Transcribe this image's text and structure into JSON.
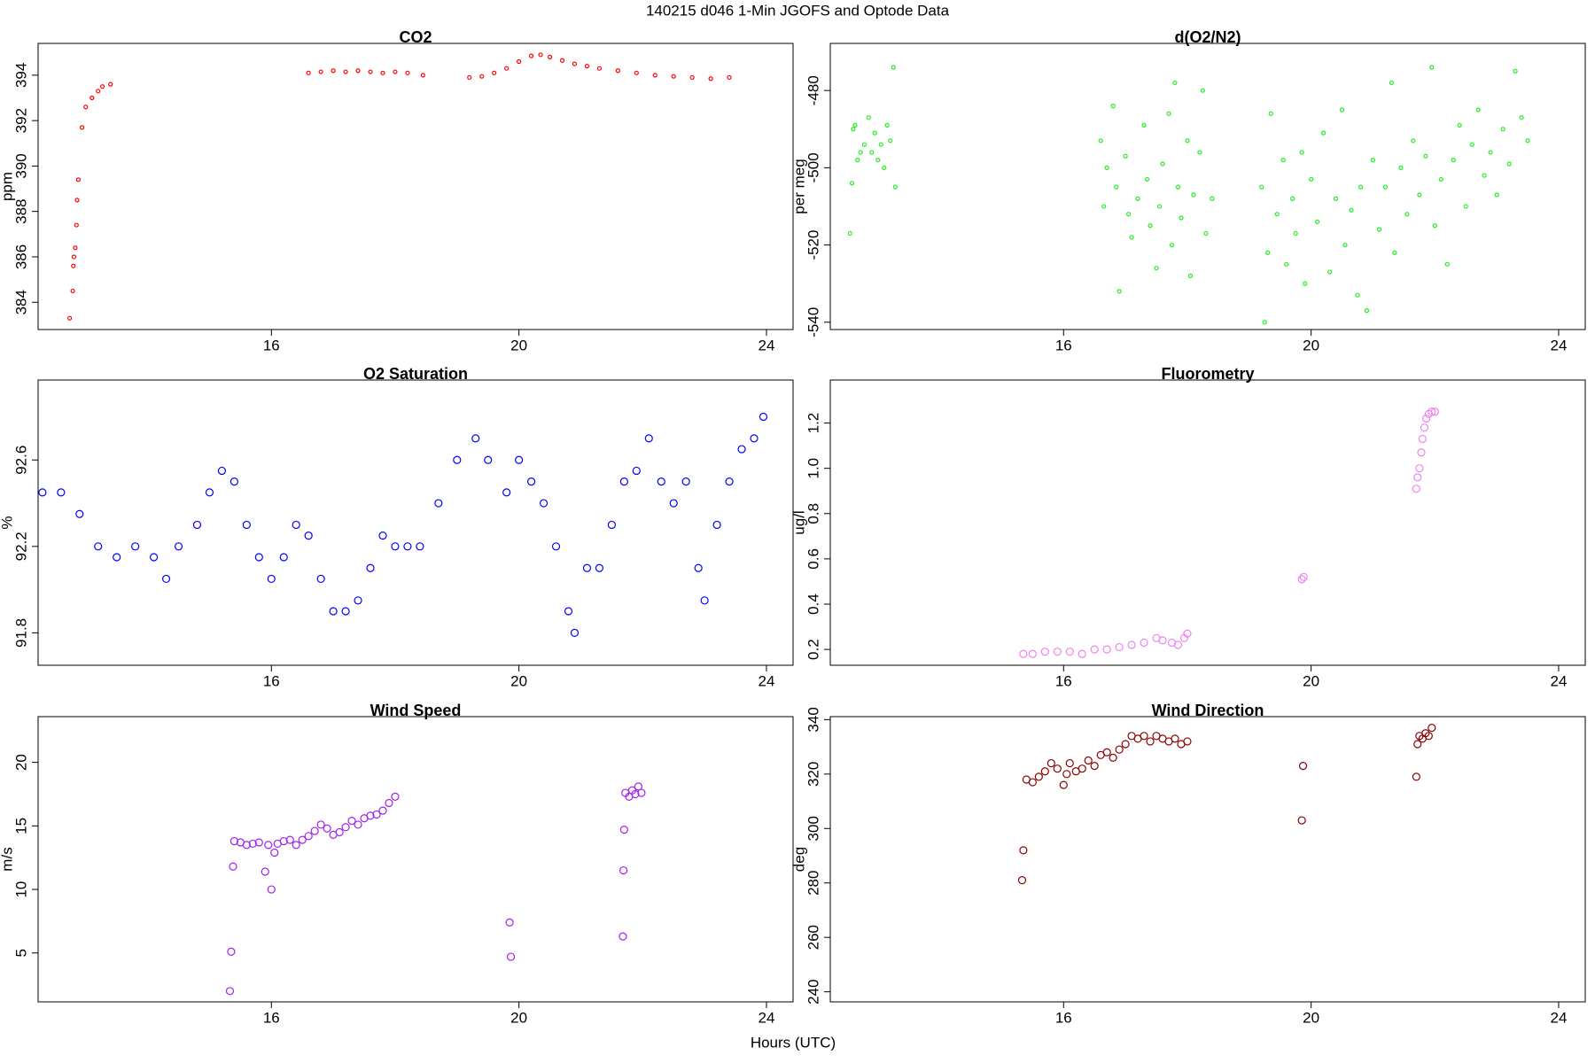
{
  "title": "140215   d046   1-Min  JGOFS and Optode Data",
  "xlabel": "Hours (UTC)",
  "chart_data": [
    {
      "type": "scatter",
      "title": "CO2",
      "ylabel": "ppm",
      "color": "#ff0000",
      "xlim": [
        12.23,
        24.43
      ],
      "xticks": [
        16,
        20,
        24
      ],
      "ylim": [
        382.8,
        395.4
      ],
      "yticks": [
        384,
        386,
        388,
        390,
        392,
        394
      ],
      "x": [
        12.74,
        12.79,
        12.8,
        12.81,
        12.83,
        12.85,
        12.86,
        12.88,
        12.94,
        13.0,
        13.1,
        13.2,
        13.27,
        13.4,
        16.6,
        16.8,
        17.0,
        17.2,
        17.4,
        17.6,
        17.8,
        18.0,
        18.2,
        18.45,
        19.2,
        19.4,
        19.6,
        19.8,
        20.0,
        20.2,
        20.35,
        20.5,
        20.7,
        20.9,
        21.1,
        21.3,
        21.6,
        21.9,
        22.2,
        22.5,
        22.8,
        23.1,
        23.4
      ],
      "values": [
        383.3,
        384.5,
        385.6,
        386.0,
        386.4,
        387.4,
        388.5,
        389.4,
        391.7,
        392.6,
        393.0,
        393.3,
        393.5,
        393.6,
        394.1,
        394.15,
        394.2,
        394.15,
        394.2,
        394.15,
        394.1,
        394.15,
        394.1,
        394.0,
        393.9,
        393.95,
        394.1,
        394.3,
        394.6,
        394.85,
        394.9,
        394.8,
        394.65,
        394.5,
        394.4,
        394.3,
        394.2,
        394.1,
        394.0,
        393.95,
        393.9,
        393.85,
        393.9
      ]
    },
    {
      "type": "scatter",
      "title": "d(O2/N2)",
      "ylabel": "per meg",
      "color": "#22ee22",
      "xlim": [
        12.23,
        24.43
      ],
      "xticks": [
        16,
        20,
        24
      ],
      "ylim": [
        -541.9,
        -467.8
      ],
      "yticks": [
        -540,
        -520,
        -500,
        -480
      ],
      "x": [
        12.55,
        12.58,
        12.6,
        12.63,
        12.67,
        12.72,
        12.78,
        12.85,
        12.9,
        12.95,
        13.0,
        13.05,
        13.1,
        13.15,
        13.2,
        13.25,
        13.28,
        16.6,
        16.65,
        16.7,
        16.8,
        16.85,
        16.9,
        17.0,
        17.05,
        17.1,
        17.2,
        17.3,
        17.35,
        17.4,
        17.5,
        17.55,
        17.6,
        17.7,
        17.75,
        17.8,
        17.85,
        17.9,
        18.0,
        18.05,
        18.1,
        18.2,
        18.25,
        18.3,
        18.4,
        19.2,
        19.25,
        19.3,
        19.35,
        19.45,
        19.55,
        19.6,
        19.7,
        19.75,
        19.85,
        19.9,
        20.0,
        20.1,
        20.2,
        20.3,
        20.4,
        20.5,
        20.55,
        20.65,
        20.75,
        20.8,
        20.9,
        21.0,
        21.1,
        21.2,
        21.3,
        21.35,
        21.45,
        21.55,
        21.65,
        21.75,
        21.85,
        21.95,
        22.0,
        22.1,
        22.2,
        22.3,
        22.4,
        22.5,
        22.6,
        22.7,
        22.8,
        22.9,
        23.0,
        23.1,
        23.2,
        23.3,
        23.4,
        23.5
      ],
      "values": [
        -517,
        -504,
        -490,
        -489,
        -498,
        -496,
        -494,
        -487,
        -496,
        -491,
        -498,
        -494,
        -500,
        -489,
        -493,
        -474,
        -505,
        -493,
        -510,
        -500,
        -484,
        -505,
        -532,
        -497,
        -512,
        -518,
        -508,
        -489,
        -503,
        -515,
        -526,
        -510,
        -499,
        -486,
        -520,
        -478,
        -505,
        -513,
        -493,
        -528,
        -507,
        -496,
        -480,
        -517,
        -508,
        -505,
        -540,
        -522,
        -486,
        -512,
        -498,
        -525,
        -508,
        -517,
        -496,
        -530,
        -503,
        -514,
        -491,
        -527,
        -508,
        -485,
        -520,
        -511,
        -533,
        -505,
        -537,
        -498,
        -516,
        -505,
        -478,
        -522,
        -500,
        -512,
        -493,
        -507,
        -497,
        -474,
        -515,
        -503,
        -525,
        -498,
        -489,
        -510,
        -494,
        -485,
        -502,
        -496,
        -507,
        -490,
        -499,
        -475,
        -487,
        -493
      ]
    },
    {
      "type": "scatter",
      "title": "O2 Saturation",
      "ylabel": "%",
      "color": "#0000ff",
      "xlim": [
        12.23,
        24.43
      ],
      "xticks": [
        16,
        20,
        24
      ],
      "ylim": [
        91.65,
        92.97
      ],
      "yticks": [
        91.8,
        92.2,
        92.6
      ],
      "x": [
        12.3,
        12.6,
        12.9,
        13.2,
        13.5,
        13.8,
        14.1,
        14.3,
        14.5,
        14.8,
        15.0,
        15.2,
        15.4,
        15.6,
        15.8,
        16.0,
        16.2,
        16.4,
        16.6,
        16.8,
        17.0,
        17.2,
        17.4,
        17.6,
        17.8,
        18.0,
        18.2,
        18.4,
        18.7,
        19.0,
        19.3,
        19.5,
        19.8,
        20.0,
        20.2,
        20.4,
        20.6,
        20.8,
        20.9,
        21.1,
        21.3,
        21.5,
        21.7,
        21.9,
        22.1,
        22.3,
        22.5,
        22.7,
        22.9,
        23.0,
        23.2,
        23.4,
        23.6,
        23.8,
        23.95
      ],
      "values": [
        92.45,
        92.45,
        92.35,
        92.2,
        92.15,
        92.2,
        92.15,
        92.05,
        92.2,
        92.3,
        92.45,
        92.55,
        92.5,
        92.3,
        92.15,
        92.05,
        92.15,
        92.3,
        92.25,
        92.05,
        91.9,
        91.9,
        91.95,
        92.1,
        92.25,
        92.2,
        92.2,
        92.2,
        92.4,
        92.6,
        92.7,
        92.6,
        92.45,
        92.6,
        92.5,
        92.4,
        92.2,
        91.9,
        91.8,
        92.1,
        92.1,
        92.3,
        92.5,
        92.55,
        92.7,
        92.5,
        92.4,
        92.5,
        92.1,
        91.95,
        92.3,
        92.5,
        92.65,
        92.7,
        92.8
      ]
    },
    {
      "type": "scatter",
      "title": "Fluorometry",
      "ylabel": "ug/l",
      "color": "#ee82ee",
      "xlim": [
        12.23,
        24.43
      ],
      "xticks": [
        16,
        20,
        24
      ],
      "ylim": [
        0.13,
        1.39
      ],
      "yticks": [
        0.2,
        0.4,
        0.6,
        0.8,
        {
          "value": 1,
          "label": "1.0"
        },
        1.2
      ],
      "x": [
        15.35,
        15.5,
        15.7,
        15.9,
        16.1,
        16.3,
        16.5,
        16.7,
        16.9,
        17.1,
        17.3,
        17.5,
        17.6,
        17.75,
        17.85,
        17.95,
        18.0,
        19.85,
        19.88,
        21.7,
        21.72,
        21.75,
        21.78,
        21.8,
        21.83,
        21.86,
        21.9,
        21.95,
        22.0
      ],
      "values": [
        0.18,
        0.18,
        0.19,
        0.19,
        0.19,
        0.18,
        0.2,
        0.2,
        0.21,
        0.22,
        0.23,
        0.25,
        0.24,
        0.23,
        0.22,
        0.25,
        0.27,
        0.51,
        0.52,
        0.91,
        0.96,
        1.0,
        1.07,
        1.13,
        1.18,
        1.22,
        1.24,
        1.25,
        1.25
      ]
    },
    {
      "type": "scatter",
      "title": "Wind Speed",
      "ylabel": "m/s",
      "color": "#a020f0",
      "xlim": [
        12.23,
        24.43
      ],
      "xticks": [
        16,
        20,
        24
      ],
      "ylim": [
        1.15,
        23.6
      ],
      "yticks": [
        5,
        10,
        15,
        20
      ],
      "x": [
        15.33,
        15.35,
        15.38,
        15.4,
        15.5,
        15.6,
        15.7,
        15.8,
        15.9,
        15.95,
        16.0,
        16.05,
        16.1,
        16.2,
        16.3,
        16.4,
        16.5,
        16.6,
        16.7,
        16.8,
        16.9,
        17.0,
        17.1,
        17.2,
        17.3,
        17.4,
        17.5,
        17.6,
        17.7,
        17.8,
        17.9,
        18.0,
        19.85,
        19.87,
        21.68,
        21.69,
        21.7,
        21.72,
        21.78,
        21.83,
        21.88,
        21.93,
        21.98
      ],
      "values": [
        2.0,
        5.1,
        11.8,
        13.8,
        13.7,
        13.5,
        13.6,
        13.7,
        11.4,
        13.5,
        10.0,
        12.9,
        13.6,
        13.8,
        13.9,
        13.5,
        13.9,
        14.2,
        14.6,
        15.1,
        14.8,
        14.3,
        14.5,
        14.9,
        15.4,
        15.1,
        15.6,
        15.8,
        15.9,
        16.2,
        16.8,
        17.3,
        7.4,
        4.7,
        6.3,
        11.5,
        14.7,
        17.6,
        17.3,
        17.8,
        17.5,
        18.1,
        17.6
      ]
    },
    {
      "type": "scatter",
      "title": "Wind Direction",
      "ylabel": "deg",
      "color": "#8b0000",
      "xlim": [
        12.23,
        24.43
      ],
      "xticks": [
        16,
        20,
        24
      ],
      "ylim": [
        236.3,
        341.1
      ],
      "yticks": [
        240,
        260,
        280,
        300,
        320,
        340
      ],
      "x": [
        15.33,
        15.35,
        15.4,
        15.5,
        15.6,
        15.7,
        15.8,
        15.9,
        16.0,
        16.05,
        16.1,
        16.2,
        16.3,
        16.4,
        16.5,
        16.6,
        16.7,
        16.8,
        16.9,
        17.0,
        17.1,
        17.2,
        17.3,
        17.4,
        17.5,
        17.6,
        17.7,
        17.8,
        17.9,
        18.0,
        19.85,
        19.87,
        21.7,
        21.72,
        21.75,
        21.8,
        21.85,
        21.9,
        21.95
      ],
      "values": [
        281,
        292,
        318,
        317,
        319,
        321,
        324,
        322,
        316,
        320,
        324,
        321,
        322,
        325,
        323,
        327,
        328,
        326,
        329,
        331,
        334,
        333,
        334,
        332,
        334,
        333,
        332,
        333,
        331,
        332,
        303,
        323,
        319,
        331,
        334,
        333,
        335,
        334,
        337
      ]
    }
  ]
}
